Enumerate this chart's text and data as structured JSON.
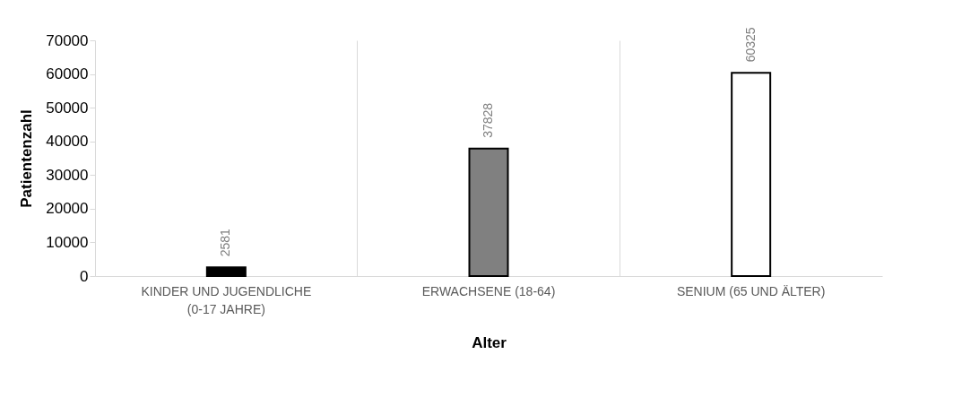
{
  "chart_data": {
    "type": "bar",
    "xlabel": "Alter",
    "ylabel": "Patientenzahl",
    "categories": [
      "KINDER UND JUGENDLICHE (0-17 JAHRE)",
      "ERWACHSENE (18-64)",
      "SENIUM (65 UND ÄLTER)"
    ],
    "values": [
      2581,
      37828,
      60325
    ],
    "colors": [
      "#000000",
      "#808080",
      "#ffffff"
    ],
    "ylim": [
      0,
      70000
    ],
    "yticks": [
      0,
      10000,
      20000,
      30000,
      40000,
      50000,
      60000,
      70000
    ],
    "grid": "x",
    "data_labels": true
  }
}
